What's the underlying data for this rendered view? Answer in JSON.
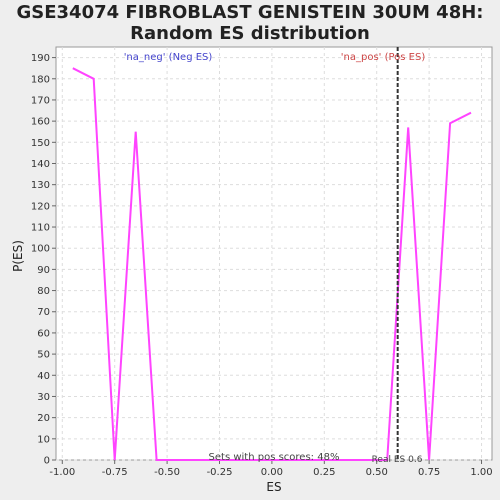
{
  "chart_data": {
    "type": "line",
    "title_lines": [
      "GSE34074 FIBROBLAST GENISTEIN 30UM 48H:",
      "Random ES distribution"
    ],
    "xlabel": "ES",
    "ylabel": "P(ES)",
    "xlim": [
      -1.03,
      1.05
    ],
    "ylim": [
      0,
      195
    ],
    "x_ticks": [
      "-1.00",
      "-0.75",
      "-0.50",
      "-0.25",
      "0.00",
      "0.25",
      "0.50",
      "0.75",
      "1.00"
    ],
    "x_tick_values": [
      -1.0,
      -0.75,
      -0.5,
      -0.25,
      0.0,
      0.25,
      0.5,
      0.75,
      1.0
    ],
    "y_ticks": [
      0,
      10,
      20,
      30,
      40,
      50,
      60,
      70,
      80,
      90,
      100,
      110,
      120,
      130,
      140,
      150,
      160,
      170,
      180,
      190
    ],
    "grid": true,
    "series": [
      {
        "color": "#ff44ff",
        "x": [
          -0.95,
          -0.85,
          -0.75,
          -0.65,
          -0.55,
          -0.45,
          -0.35,
          -0.25,
          -0.15,
          -0.05,
          0.05,
          0.15,
          0.25,
          0.35,
          0.45,
          0.55,
          0.65,
          0.75,
          0.85,
          0.95
        ],
        "y": [
          185,
          180,
          0,
          155,
          0,
          0,
          0,
          0,
          0,
          0,
          0,
          0,
          0,
          0,
          0,
          0,
          157,
          0,
          159,
          164
        ]
      }
    ],
    "real_es": 0.6,
    "annotations": {
      "neg_label": "'na_neg' (Neg ES)",
      "pos_label": "'na_pos' (Pos ES)",
      "sets_pos": "Sets with pos scores: 48%",
      "real_es_label": "Real ES 0.6"
    },
    "colors": {
      "neg_label": "#4444cc",
      "pos_label": "#cc4444",
      "line": "#ff44ff",
      "marker": "#333333"
    }
  }
}
